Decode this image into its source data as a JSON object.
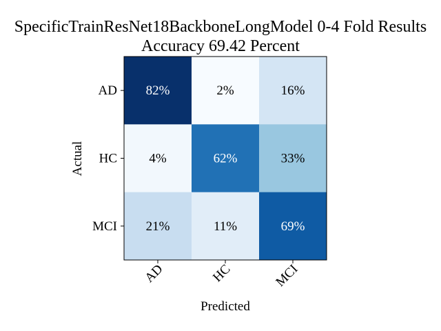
{
  "chart_data": {
    "type": "heatmap",
    "title_lines": [
      "SpecificTrainResNet18BackboneLongModel 0-4 Fold Results",
      "Accuracy 69.42 Percent"
    ],
    "xlabel": "Predicted",
    "ylabel": "Actual",
    "x_categories": [
      "AD",
      "HC",
      "MCI"
    ],
    "y_categories": [
      "AD",
      "HC",
      "MCI"
    ],
    "values": [
      [
        82,
        2,
        16
      ],
      [
        4,
        62,
        33
      ],
      [
        21,
        11,
        69
      ]
    ],
    "value_suffix": "%",
    "colormap": "Blues",
    "colormap_stops": [
      "#f7fbff",
      "#deebf7",
      "#c6dbef",
      "#9ecae1",
      "#6baed6",
      "#4292c6",
      "#2171b5",
      "#08519c",
      "#08306b"
    ],
    "value_range": [
      2,
      82
    ],
    "text_color_dark": "#000000",
    "text_color_light": "#ffffff"
  }
}
